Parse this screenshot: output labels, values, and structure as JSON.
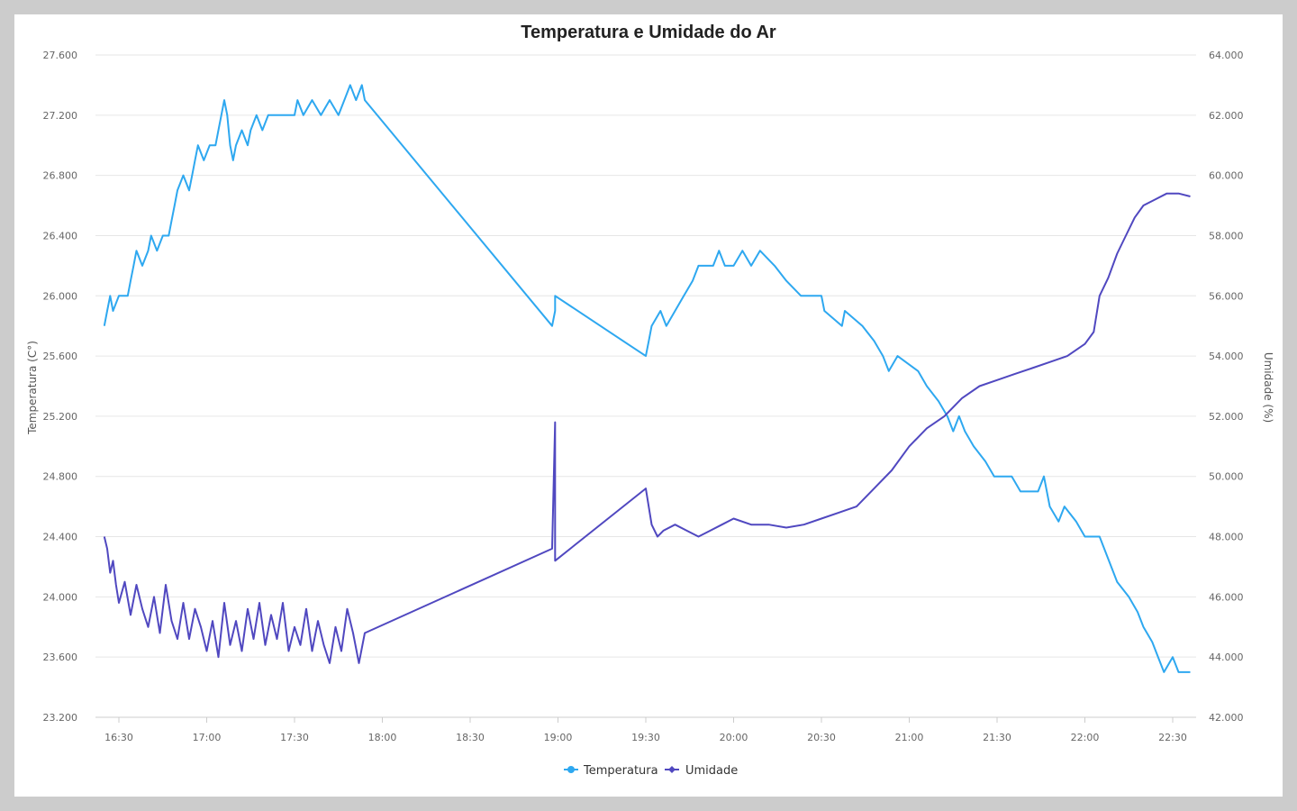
{
  "chart_data": {
    "type": "line",
    "title": "Temperatura e Umidade do Ar",
    "x_ticks": [
      "16:30",
      "17:00",
      "17:30",
      "18:00",
      "18:30",
      "19:00",
      "19:30",
      "20:00",
      "20:30",
      "21:00",
      "21:30",
      "22:00",
      "22:30"
    ],
    "x_range": [
      "16:22",
      "22:38"
    ],
    "y_left": {
      "label": "Temperatura (C°)",
      "ylim": [
        23.2,
        27.6
      ],
      "ticks": [
        "23.200",
        "23.600",
        "24.000",
        "24.400",
        "24.800",
        "25.200",
        "25.600",
        "26.000",
        "26.400",
        "26.800",
        "27.200",
        "27.600"
      ]
    },
    "y_right": {
      "label": "Umidade (%)",
      "ylim": [
        42,
        64
      ],
      "ticks": [
        "42.000",
        "44.000",
        "46.000",
        "48.000",
        "50.000",
        "52.000",
        "54.000",
        "56.000",
        "58.000",
        "60.000",
        "62.000",
        "64.000"
      ]
    },
    "grid": true,
    "legend_position": "bottom-center",
    "series": [
      {
        "name": "Temperatura",
        "axis": "left",
        "color": "#2ea8f0",
        "points": [
          [
            "16:25",
            25.8
          ],
          [
            "16:26",
            25.9
          ],
          [
            "16:27",
            26.0
          ],
          [
            "16:28",
            25.9
          ],
          [
            "16:30",
            26.0
          ],
          [
            "16:33",
            26.0
          ],
          [
            "16:34",
            26.1
          ],
          [
            "16:35",
            26.2
          ],
          [
            "16:36",
            26.3
          ],
          [
            "16:38",
            26.2
          ],
          [
            "16:40",
            26.3
          ],
          [
            "16:41",
            26.4
          ],
          [
            "16:43",
            26.3
          ],
          [
            "16:45",
            26.4
          ],
          [
            "16:47",
            26.4
          ],
          [
            "16:48",
            26.5
          ],
          [
            "16:49",
            26.6
          ],
          [
            "16:50",
            26.7
          ],
          [
            "16:52",
            26.8
          ],
          [
            "16:54",
            26.7
          ],
          [
            "16:55",
            26.8
          ],
          [
            "16:56",
            26.9
          ],
          [
            "16:57",
            27.0
          ],
          [
            "16:59",
            26.9
          ],
          [
            "17:01",
            27.0
          ],
          [
            "17:03",
            27.0
          ],
          [
            "17:04",
            27.1
          ],
          [
            "17:06",
            27.3
          ],
          [
            "17:07",
            27.2
          ],
          [
            "17:08",
            27.0
          ],
          [
            "17:09",
            26.9
          ],
          [
            "17:10",
            27.0
          ],
          [
            "17:12",
            27.1
          ],
          [
            "17:14",
            27.0
          ],
          [
            "17:15",
            27.1
          ],
          [
            "17:17",
            27.2
          ],
          [
            "17:19",
            27.1
          ],
          [
            "17:21",
            27.2
          ],
          [
            "17:24",
            27.2
          ],
          [
            "17:30",
            27.2
          ],
          [
            "17:31",
            27.3
          ],
          [
            "17:33",
            27.2
          ],
          [
            "17:36",
            27.3
          ],
          [
            "17:39",
            27.2
          ],
          [
            "17:42",
            27.3
          ],
          [
            "17:45",
            27.2
          ],
          [
            "17:47",
            27.3
          ],
          [
            "17:49",
            27.4
          ],
          [
            "17:51",
            27.3
          ],
          [
            "17:53",
            27.4
          ],
          [
            "17:54",
            27.3
          ],
          [
            "18:58",
            25.8
          ],
          [
            "18:59",
            25.9
          ],
          [
            "18:59",
            26.0
          ],
          [
            "19:30",
            25.6
          ],
          [
            "19:31",
            25.7
          ],
          [
            "19:32",
            25.8
          ],
          [
            "19:35",
            25.9
          ],
          [
            "19:37",
            25.8
          ],
          [
            "19:40",
            25.9
          ],
          [
            "19:43",
            26.0
          ],
          [
            "19:46",
            26.1
          ],
          [
            "19:48",
            26.2
          ],
          [
            "19:53",
            26.2
          ],
          [
            "19:55",
            26.3
          ],
          [
            "19:57",
            26.2
          ],
          [
            "20:00",
            26.2
          ],
          [
            "20:03",
            26.3
          ],
          [
            "20:06",
            26.2
          ],
          [
            "20:09",
            26.3
          ],
          [
            "20:14",
            26.2
          ],
          [
            "20:18",
            26.1
          ],
          [
            "20:23",
            26.0
          ],
          [
            "20:30",
            26.0
          ],
          [
            "20:31",
            25.9
          ],
          [
            "20:37",
            25.8
          ],
          [
            "20:38",
            25.9
          ],
          [
            "20:44",
            25.8
          ],
          [
            "20:48",
            25.7
          ],
          [
            "20:51",
            25.6
          ],
          [
            "20:53",
            25.5
          ],
          [
            "20:56",
            25.6
          ],
          [
            "21:03",
            25.5
          ],
          [
            "21:06",
            25.4
          ],
          [
            "21:10",
            25.3
          ],
          [
            "21:13",
            25.2
          ],
          [
            "21:15",
            25.1
          ],
          [
            "21:17",
            25.2
          ],
          [
            "21:19",
            25.1
          ],
          [
            "21:22",
            25.0
          ],
          [
            "21:26",
            24.9
          ],
          [
            "21:29",
            24.8
          ],
          [
            "21:35",
            24.8
          ],
          [
            "21:38",
            24.7
          ],
          [
            "21:44",
            24.7
          ],
          [
            "21:46",
            24.8
          ],
          [
            "21:48",
            24.6
          ],
          [
            "21:51",
            24.5
          ],
          [
            "21:53",
            24.6
          ],
          [
            "21:57",
            24.5
          ],
          [
            "22:00",
            24.4
          ],
          [
            "22:05",
            24.4
          ],
          [
            "22:07",
            24.3
          ],
          [
            "22:09",
            24.2
          ],
          [
            "22:11",
            24.1
          ],
          [
            "22:15",
            24.0
          ],
          [
            "22:18",
            23.9
          ],
          [
            "22:20",
            23.8
          ],
          [
            "22:23",
            23.7
          ],
          [
            "22:25",
            23.6
          ],
          [
            "22:27",
            23.5
          ],
          [
            "22:30",
            23.6
          ],
          [
            "22:32",
            23.5
          ],
          [
            "22:36",
            23.5
          ]
        ]
      },
      {
        "name": "Umidade",
        "axis": "right",
        "color": "#5048c0",
        "points": [
          [
            "16:25",
            48.0
          ],
          [
            "16:26",
            47.6
          ],
          [
            "16:27",
            46.8
          ],
          [
            "16:28",
            47.2
          ],
          [
            "16:29",
            46.4
          ],
          [
            "16:30",
            45.8
          ],
          [
            "16:32",
            46.5
          ],
          [
            "16:34",
            45.4
          ],
          [
            "16:36",
            46.4
          ],
          [
            "16:38",
            45.6
          ],
          [
            "16:40",
            45.0
          ],
          [
            "16:42",
            46.0
          ],
          [
            "16:44",
            44.8
          ],
          [
            "16:46",
            46.4
          ],
          [
            "16:48",
            45.2
          ],
          [
            "16:50",
            44.6
          ],
          [
            "16:52",
            45.8
          ],
          [
            "16:54",
            44.6
          ],
          [
            "16:56",
            45.6
          ],
          [
            "16:58",
            45.0
          ],
          [
            "17:00",
            44.2
          ],
          [
            "17:02",
            45.2
          ],
          [
            "17:04",
            44.0
          ],
          [
            "17:06",
            45.8
          ],
          [
            "17:08",
            44.4
          ],
          [
            "17:10",
            45.2
          ],
          [
            "17:12",
            44.2
          ],
          [
            "17:14",
            45.6
          ],
          [
            "17:16",
            44.6
          ],
          [
            "17:18",
            45.8
          ],
          [
            "17:20",
            44.4
          ],
          [
            "17:22",
            45.4
          ],
          [
            "17:24",
            44.6
          ],
          [
            "17:26",
            45.8
          ],
          [
            "17:28",
            44.2
          ],
          [
            "17:30",
            45.0
          ],
          [
            "17:32",
            44.4
          ],
          [
            "17:34",
            45.6
          ],
          [
            "17:36",
            44.2
          ],
          [
            "17:38",
            45.2
          ],
          [
            "17:40",
            44.4
          ],
          [
            "17:42",
            43.8
          ],
          [
            "17:44",
            45.0
          ],
          [
            "17:46",
            44.2
          ],
          [
            "17:48",
            45.6
          ],
          [
            "17:50",
            44.8
          ],
          [
            "17:52",
            43.8
          ],
          [
            "17:54",
            44.8
          ],
          [
            "18:58",
            47.6
          ],
          [
            "18:59",
            51.8
          ],
          [
            "18:59",
            47.2
          ],
          [
            "19:30",
            49.6
          ],
          [
            "19:32",
            48.4
          ],
          [
            "19:34",
            48.0
          ],
          [
            "19:36",
            48.2
          ],
          [
            "19:40",
            48.4
          ],
          [
            "19:44",
            48.2
          ],
          [
            "19:48",
            48.0
          ],
          [
            "19:52",
            48.2
          ],
          [
            "19:56",
            48.4
          ],
          [
            "20:00",
            48.6
          ],
          [
            "20:06",
            48.4
          ],
          [
            "20:12",
            48.4
          ],
          [
            "20:18",
            48.3
          ],
          [
            "20:24",
            48.4
          ],
          [
            "20:30",
            48.6
          ],
          [
            "20:36",
            48.8
          ],
          [
            "20:42",
            49.0
          ],
          [
            "20:48",
            49.6
          ],
          [
            "20:54",
            50.2
          ],
          [
            "21:00",
            51.0
          ],
          [
            "21:06",
            51.6
          ],
          [
            "21:12",
            52.0
          ],
          [
            "21:18",
            52.6
          ],
          [
            "21:24",
            53.0
          ],
          [
            "21:30",
            53.2
          ],
          [
            "21:36",
            53.4
          ],
          [
            "21:42",
            53.6
          ],
          [
            "21:48",
            53.8
          ],
          [
            "21:54",
            54.0
          ],
          [
            "22:00",
            54.4
          ],
          [
            "22:03",
            54.8
          ],
          [
            "22:05",
            56.0
          ],
          [
            "22:08",
            56.6
          ],
          [
            "22:11",
            57.4
          ],
          [
            "22:14",
            58.0
          ],
          [
            "22:17",
            58.6
          ],
          [
            "22:20",
            59.0
          ],
          [
            "22:24",
            59.2
          ],
          [
            "22:28",
            59.4
          ],
          [
            "22:32",
            59.4
          ],
          [
            "22:36",
            59.3
          ]
        ]
      }
    ]
  }
}
